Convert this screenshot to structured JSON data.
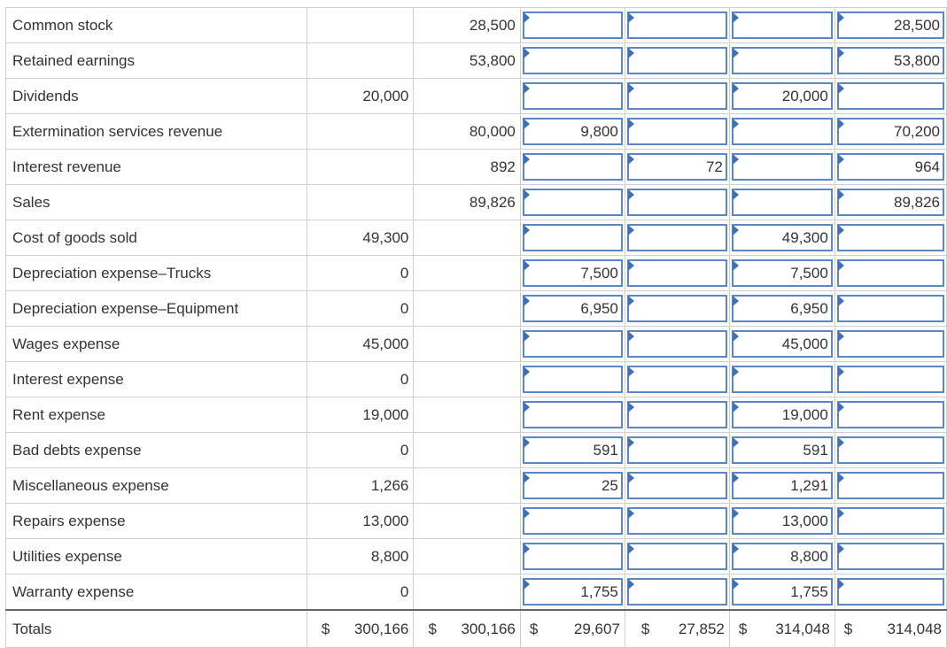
{
  "rows": [
    {
      "account": "Common stock",
      "debit": "",
      "credit": "28,500",
      "adj_debit": "",
      "adj_credit": "",
      "is_debit": "",
      "is_credit": "28,500"
    },
    {
      "account": "Retained earnings",
      "debit": "",
      "credit": "53,800",
      "adj_debit": "",
      "adj_credit": "",
      "is_debit": "",
      "is_credit": "53,800"
    },
    {
      "account": "Dividends",
      "debit": "20,000",
      "credit": "",
      "adj_debit": "",
      "adj_credit": "",
      "is_debit": "20,000",
      "is_credit": ""
    },
    {
      "account": "Extermination services revenue",
      "debit": "",
      "credit": "80,000",
      "adj_debit": "9,800",
      "adj_credit": "",
      "is_debit": "",
      "is_credit": "70,200"
    },
    {
      "account": "Interest revenue",
      "debit": "",
      "credit": "892",
      "adj_debit": "",
      "adj_credit": "72",
      "is_debit": "",
      "is_credit": "964"
    },
    {
      "account": "Sales",
      "debit": "",
      "credit": "89,826",
      "adj_debit": "",
      "adj_credit": "",
      "is_debit": "",
      "is_credit": "89,826"
    },
    {
      "account": "Cost of goods sold",
      "debit": "49,300",
      "credit": "",
      "adj_debit": "",
      "adj_credit": "",
      "is_debit": "49,300",
      "is_credit": ""
    },
    {
      "account": "Depreciation expense–Trucks",
      "debit": "0",
      "credit": "",
      "adj_debit": "7,500",
      "adj_credit": "",
      "is_debit": "7,500",
      "is_credit": ""
    },
    {
      "account": "Depreciation expense–Equipment",
      "debit": "0",
      "credit": "",
      "adj_debit": "6,950",
      "adj_credit": "",
      "is_debit": "6,950",
      "is_credit": ""
    },
    {
      "account": "Wages expense",
      "debit": "45,000",
      "credit": "",
      "adj_debit": "",
      "adj_credit": "",
      "is_debit": "45,000",
      "is_credit": ""
    },
    {
      "account": "Interest expense",
      "debit": "0",
      "credit": "",
      "adj_debit": "",
      "adj_credit": "",
      "is_debit": "",
      "is_credit": ""
    },
    {
      "account": "Rent expense",
      "debit": "19,000",
      "credit": "",
      "adj_debit": "",
      "adj_credit": "",
      "is_debit": "19,000",
      "is_credit": ""
    },
    {
      "account": "Bad debts expense",
      "debit": "0",
      "credit": "",
      "adj_debit": "591",
      "adj_credit": "",
      "is_debit": "591",
      "is_credit": ""
    },
    {
      "account": "Miscellaneous expense",
      "debit": "1,266",
      "credit": "",
      "adj_debit": "25",
      "adj_credit": "",
      "is_debit": "1,291",
      "is_credit": ""
    },
    {
      "account": "Repairs expense",
      "debit": "13,000",
      "credit": "",
      "adj_debit": "",
      "adj_credit": "",
      "is_debit": "13,000",
      "is_credit": ""
    },
    {
      "account": "Utilities expense",
      "debit": "8,800",
      "credit": "",
      "adj_debit": "",
      "adj_credit": "",
      "is_debit": "8,800",
      "is_credit": ""
    },
    {
      "account": "Warranty expense",
      "debit": "0",
      "credit": "",
      "adj_debit": "1,755",
      "adj_credit": "",
      "is_debit": "1,755",
      "is_credit": ""
    }
  ],
  "totals": {
    "label": "Totals",
    "currency": "$",
    "debit": "300,166",
    "credit": "300,166",
    "adj_debit": "29,607",
    "adj_credit": "27,852",
    "is_debit": "314,048",
    "is_credit": "314,048"
  },
  "colors": {
    "input_border": "#5b87c5",
    "input_marker": "#3f6fb4",
    "grid": "#cfcfcf"
  }
}
